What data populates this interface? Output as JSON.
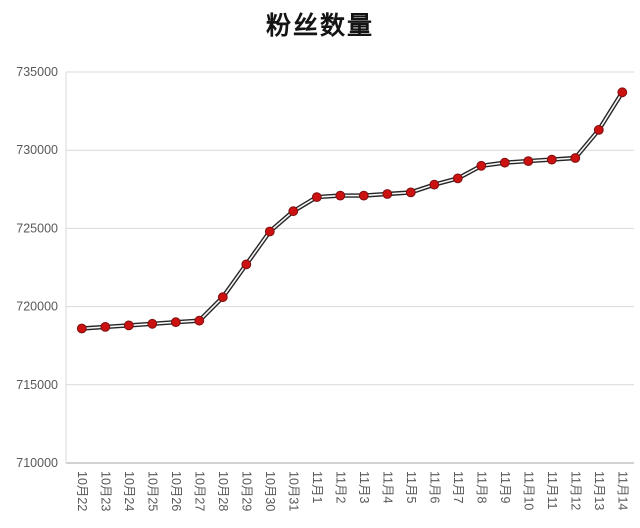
{
  "page": {
    "title": "粉丝数量"
  },
  "chart_data": {
    "type": "line",
    "title": "粉丝数量",
    "categories": [
      "10月22",
      "10月23",
      "10月24",
      "10月25",
      "10月26",
      "10月27",
      "10月28",
      "10月29",
      "10月30",
      "10月31",
      "11月1",
      "11月2",
      "11月3",
      "11月4",
      "11月5",
      "11月6",
      "11月7",
      "11月8",
      "11月9",
      "11月10",
      "11月11",
      "11月12",
      "11月13",
      "11月14"
    ],
    "series": [
      {
        "name": "粉丝数量",
        "values": [
          718600,
          718700,
          718800,
          718900,
          719000,
          719100,
          720600,
          722700,
          724800,
          726100,
          727000,
          727100,
          727100,
          727200,
          727300,
          727800,
          728200,
          729000,
          729200,
          729300,
          729400,
          729500,
          731300,
          733700
        ]
      }
    ],
    "ylim": [
      710000,
      735000
    ],
    "ytick_step": 5000,
    "ytick_labels": [
      "710000",
      "715000",
      "720000",
      "725000",
      "730000",
      "735000"
    ],
    "xlabel": "",
    "ylabel": "",
    "grid": "horizontal",
    "legend": "none",
    "x_label_rotation_deg": 90,
    "style": {
      "line_outer_color": "#262626",
      "line_inner_color": "#f7f7f7",
      "marker_fill": "#cc1111",
      "marker_stroke": "#7f0f0f",
      "grid_color": "#d9d9d9",
      "axis_color": "#a6a6a6",
      "tick_label_color": "#595959",
      "title_color": "#141414",
      "background": "#ffffff"
    }
  }
}
